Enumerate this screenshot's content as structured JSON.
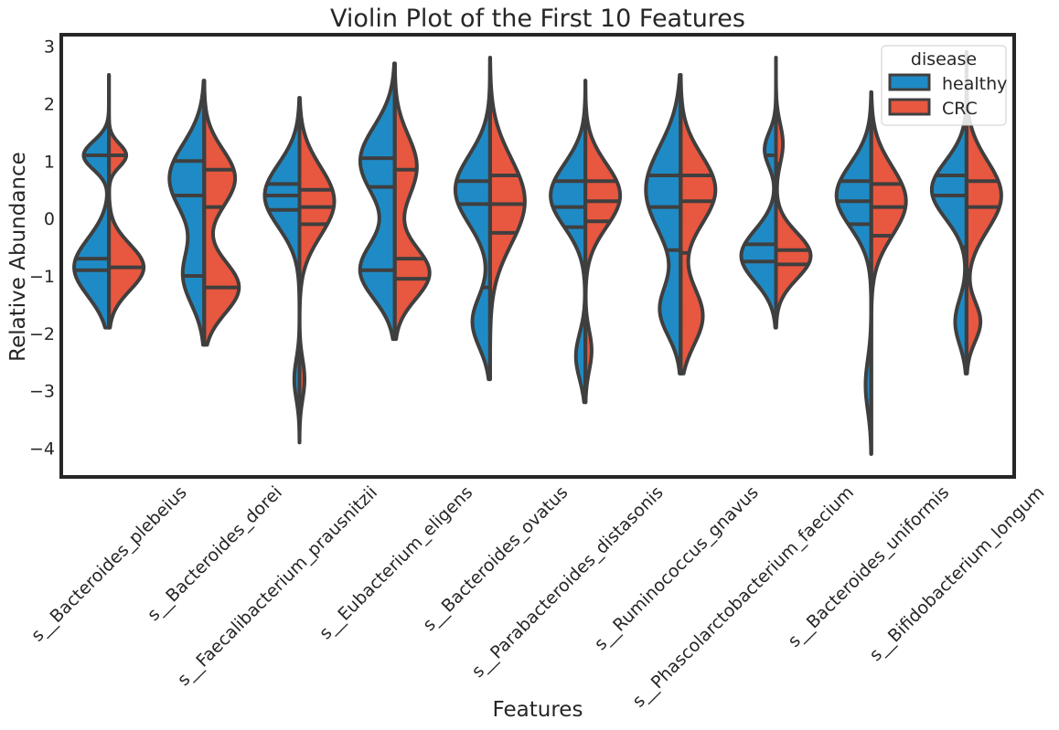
{
  "chart_data": {
    "type": "violin",
    "title": "Violin Plot of the First 10 Features",
    "xlabel": "Features",
    "ylabel": "Relative Abundance",
    "ylim": [
      -4.5,
      3.2
    ],
    "yticks": [
      3,
      2,
      1,
      0,
      -1,
      -2,
      -3,
      -4
    ],
    "ytick_labels": [
      "3",
      "2",
      "1",
      "0",
      "−1",
      "−2",
      "−3",
      "−4"
    ],
    "grid": false,
    "split": true,
    "inner": "quartile",
    "legend": {
      "title": "disease",
      "position": "top-right"
    },
    "series": [
      {
        "name": "healthy",
        "color": "#1f8bc6"
      },
      {
        "name": "CRC",
        "color": "#e8573f"
      }
    ],
    "categories": [
      "s__Bacteroides_plebeius",
      "s__Bacteroides_dorei",
      "s__Faecalibacterium_prausnitzii",
      "s__Eubacterium_eligens",
      "s__Bacteroides_ovatus",
      "s__Parabacteroides_distasonis",
      "s__Ruminococcus_gnavus",
      "s__Phascolarctobacterium_faecium",
      "s__Bacteroides_uniformis",
      "s__Bifidobacterium_longum"
    ],
    "violins": [
      {
        "healthy": {
          "range": [
            -1.9,
            2.5
          ],
          "modes": [
            [
              -0.85,
              0.5,
              0.55
            ],
            [
              1.1,
              0.25,
              0.4
            ]
          ],
          "quartiles": [
            -0.9,
            -0.7,
            1.1
          ]
        },
        "CRC": {
          "range": [
            -1.9,
            2.5
          ],
          "modes": [
            [
              -0.85,
              0.4,
              0.5
            ],
            [
              1.1,
              0.2,
              0.25
            ]
          ],
          "quartiles": [
            -0.85,
            0.0,
            1.1
          ]
        }
      },
      {
        "healthy": {
          "range": [
            -2.2,
            2.4
          ],
          "modes": [
            [
              0.7,
              0.6,
              0.5
            ],
            [
              -1.0,
              0.5,
              0.3
            ]
          ],
          "quartiles": [
            -1.0,
            0.4,
            1.0
          ]
        },
        "CRC": {
          "range": [
            -2.2,
            2.4
          ],
          "modes": [
            [
              0.7,
              0.5,
              0.4
            ],
            [
              -1.2,
              0.45,
              0.45
            ]
          ],
          "quartiles": [
            -1.2,
            0.2,
            0.85
          ]
        }
      },
      {
        "healthy": {
          "range": [
            -3.9,
            2.1
          ],
          "modes": [
            [
              0.4,
              0.55,
              0.6
            ],
            [
              -2.8,
              0.35,
              0.09
            ]
          ],
          "quartiles": [
            0.15,
            0.4,
            0.6
          ]
        },
        "CRC": {
          "range": [
            -3.9,
            2.1
          ],
          "modes": [
            [
              0.3,
              0.6,
              0.55
            ],
            [
              -2.8,
              0.35,
              0.08
            ]
          ],
          "quartiles": [
            -0.1,
            0.2,
            0.5
          ]
        }
      },
      {
        "healthy": {
          "range": [
            -2.1,
            2.7
          ],
          "modes": [
            [
              1.0,
              0.6,
              0.5
            ],
            [
              -0.9,
              0.5,
              0.5
            ]
          ],
          "quartiles": [
            -0.9,
            0.55,
            1.05
          ]
        },
        "CRC": {
          "range": [
            -2.1,
            2.7
          ],
          "modes": [
            [
              0.9,
              0.55,
              0.35
            ],
            [
              -0.95,
              0.45,
              0.55
            ]
          ],
          "quartiles": [
            -1.05,
            -0.7,
            0.85
          ]
        }
      },
      {
        "healthy": {
          "range": [
            -2.8,
            2.8
          ],
          "modes": [
            [
              0.5,
              0.6,
              0.55
            ],
            [
              -1.8,
              0.45,
              0.28
            ]
          ],
          "quartiles": [
            -1.2,
            0.25,
            0.65
          ]
        },
        "CRC": {
          "range": [
            -2.8,
            2.8
          ],
          "modes": [
            [
              0.3,
              0.75,
              0.55
            ]
          ],
          "quartiles": [
            -0.25,
            0.25,
            0.75
          ]
        }
      },
      {
        "healthy": {
          "range": [
            -3.2,
            2.4
          ],
          "modes": [
            [
              0.4,
              0.55,
              0.55
            ],
            [
              -2.4,
              0.4,
              0.15
            ]
          ],
          "quartiles": [
            -0.15,
            0.2,
            0.65
          ]
        },
        "CRC": {
          "range": [
            -3.2,
            2.4
          ],
          "modes": [
            [
              0.4,
              0.55,
              0.5
            ],
            [
              -2.3,
              0.35,
              0.09
            ]
          ],
          "quartiles": [
            -0.05,
            0.3,
            0.65
          ]
        }
      },
      {
        "healthy": {
          "range": [
            -2.7,
            2.5
          ],
          "modes": [
            [
              0.5,
              0.75,
              0.6
            ],
            [
              -1.6,
              0.45,
              0.35
            ]
          ],
          "quartiles": [
            -0.55,
            0.2,
            0.75
          ]
        },
        "CRC": {
          "range": [
            -2.7,
            2.5
          ],
          "modes": [
            [
              0.5,
              0.6,
              0.55
            ],
            [
              -1.7,
              0.5,
              0.35
            ]
          ],
          "quartiles": [
            -0.6,
            0.3,
            0.75
          ]
        }
      },
      {
        "healthy": {
          "range": [
            -1.9,
            2.8
          ],
          "modes": [
            [
              -0.65,
              0.45,
              0.55
            ],
            [
              1.2,
              0.3,
              0.18
            ]
          ],
          "quartiles": [
            -0.75,
            -0.45,
            1.1
          ]
        },
        "CRC": {
          "range": [
            -1.9,
            2.8
          ],
          "modes": [
            [
              -0.65,
              0.4,
              0.6
            ],
            [
              1.3,
              0.35,
              0.12
            ]
          ],
          "quartiles": [
            -0.8,
            -0.55,
            0.95
          ]
        }
      },
      {
        "healthy": {
          "range": [
            -4.1,
            2.2
          ],
          "modes": [
            [
              0.4,
              0.55,
              0.55
            ],
            [
              -2.9,
              0.45,
              0.09
            ]
          ],
          "quartiles": [
            -0.1,
            0.3,
            0.65
          ]
        },
        "CRC": {
          "range": [
            -4.1,
            2.2
          ],
          "modes": [
            [
              0.3,
              0.6,
              0.55
            ]
          ],
          "quartiles": [
            -0.3,
            0.2,
            0.6
          ]
        }
      },
      {
        "healthy": {
          "range": [
            -2.7,
            2.9
          ],
          "modes": [
            [
              0.5,
              0.5,
              0.55
            ],
            [
              -1.8,
              0.4,
              0.18
            ]
          ],
          "quartiles": [
            -0.5,
            0.4,
            0.75
          ]
        },
        "CRC": {
          "range": [
            -2.7,
            2.9
          ],
          "modes": [
            [
              0.4,
              0.6,
              0.55
            ],
            [
              -1.8,
              0.35,
              0.22
            ]
          ],
          "quartiles": [
            -0.9,
            0.2,
            0.65
          ]
        }
      }
    ]
  }
}
